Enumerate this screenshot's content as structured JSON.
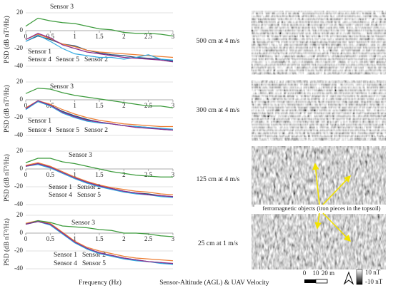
{
  "chart_data": [
    {
      "type": "line",
      "caption": "500 cm at 4 m/s",
      "ylabel": "PSD (dB nT²/Hz)",
      "x": [
        0,
        0.25,
        0.5,
        0.75,
        1,
        1.25,
        1.5,
        1.75,
        2,
        2.25,
        2.5,
        2.75,
        3
      ],
      "xlim": [
        0,
        3
      ],
      "xticks": [
        0,
        0.5,
        1,
        1.5,
        2,
        2.5,
        3
      ],
      "ylim": [
        -40,
        20
      ],
      "yticks": [
        -40,
        -20,
        0,
        20
      ],
      "grid": true,
      "series": [
        {
          "name": "Sensor 1",
          "color": "#1f4e79",
          "values": [
            -12,
            -6,
            -10,
            -15,
            -17,
            -22,
            -25,
            -27,
            -28,
            -30,
            -31,
            -32,
            -34
          ]
        },
        {
          "name": "Sensor 2",
          "color": "#ed7d31",
          "values": [
            -10,
            -4,
            -9,
            -15,
            -18,
            -22,
            -24,
            -25,
            -26,
            -27,
            -28,
            -29,
            -30
          ]
        },
        {
          "name": "Sensor 3",
          "color": "#3a9a3a",
          "values": [
            5,
            14,
            11,
            9,
            8,
            5,
            2,
            1,
            -2,
            -3,
            -3,
            -4,
            -6
          ]
        },
        {
          "name": "Sensor 4",
          "color": "#2ea8e0",
          "values": [
            -12,
            -5,
            -12,
            -20,
            -26,
            -28,
            -30,
            -30,
            -32,
            -30,
            -27,
            -32,
            -33
          ]
        },
        {
          "name": "Sensor 5",
          "color": "#8b2a8b",
          "values": [
            -10,
            -3,
            -8,
            -16,
            -20,
            -24,
            -26,
            -28,
            -30,
            -31,
            -32,
            -33,
            -35
          ]
        }
      ]
    },
    {
      "type": "line",
      "caption": "300 cm at 4 m/s",
      "ylabel": "PSD (dB nT²/Hz)",
      "x": [
        0,
        0.25,
        0.5,
        0.75,
        1,
        1.25,
        1.5,
        1.75,
        2,
        2.25,
        2.5,
        2.75,
        3
      ],
      "xlim": [
        0,
        3
      ],
      "xticks": [
        0,
        0.5,
        1,
        1.5,
        2,
        2.5,
        3
      ],
      "ylim": [
        -40,
        20
      ],
      "yticks": [
        -40,
        -20,
        0,
        20
      ],
      "grid": true,
      "series": [
        {
          "name": "Sensor 1",
          "color": "#1f4e79",
          "values": [
            -10,
            -2,
            -6,
            -13,
            -18,
            -22,
            -25,
            -27,
            -29,
            -30,
            -31,
            -33,
            -34
          ]
        },
        {
          "name": "Sensor 2",
          "color": "#ed7d31",
          "values": [
            -9,
            -1,
            -5,
            -11,
            -16,
            -20,
            -23,
            -25,
            -27,
            -28,
            -29,
            -30,
            -30
          ]
        },
        {
          "name": "Sensor 3",
          "color": "#3a9a3a",
          "values": [
            7,
            13,
            12,
            8,
            5,
            3,
            1,
            -1,
            -3,
            -5,
            -7,
            -7,
            -9
          ]
        },
        {
          "name": "Sensor 4",
          "color": "#2ea8e0",
          "values": [
            -11,
            -2,
            -7,
            -15,
            -20,
            -24,
            -26,
            -27,
            -29,
            -30,
            -31,
            -32,
            -33
          ]
        },
        {
          "name": "Sensor 5",
          "color": "#8b2a8b",
          "values": [
            -10,
            -1,
            -6,
            -14,
            -19,
            -23,
            -25,
            -27,
            -29,
            -31,
            -32,
            -33,
            -34
          ]
        }
      ]
    },
    {
      "type": "line",
      "caption": "125 cm at 4 m/s",
      "ylabel": "PSD (dB nT²/Hz)",
      "x": [
        0,
        0.25,
        0.5,
        0.75,
        1,
        1.25,
        1.5,
        1.75,
        2,
        2.25,
        2.5,
        2.75,
        3
      ],
      "xlim": [
        0,
        3
      ],
      "xticks": [
        0,
        0.5,
        1,
        1.5,
        2,
        2.5,
        3
      ],
      "ylim": [
        -40,
        20
      ],
      "yticks": [
        -40,
        -20,
        0,
        20
      ],
      "grid": true,
      "series": [
        {
          "name": "Sensor 1",
          "color": "#1f4e79",
          "values": [
            3,
            6,
            2,
            -4,
            -10,
            -15,
            -19,
            -22,
            -25,
            -27,
            -28,
            -30,
            -31
          ]
        },
        {
          "name": "Sensor 2",
          "color": "#ed7d31",
          "values": [
            4,
            7,
            3,
            -3,
            -9,
            -14,
            -18,
            -21,
            -23,
            -25,
            -26,
            -28,
            -29
          ]
        },
        {
          "name": "Sensor 3",
          "color": "#3a9a3a",
          "values": [
            7,
            12,
            12,
            8,
            6,
            3,
            0,
            -3,
            -5,
            -7,
            -8,
            -9,
            -9
          ]
        },
        {
          "name": "Sensor 4",
          "color": "#2ea8e0",
          "values": [
            3,
            5,
            1,
            -5,
            -11,
            -16,
            -20,
            -23,
            -26,
            -28,
            -29,
            -31,
            -32
          ]
        },
        {
          "name": "Sensor 5",
          "color": "#8b2a8b",
          "values": [
            3,
            6,
            2,
            -4,
            -10,
            -15,
            -19,
            -22,
            -25,
            -27,
            -29,
            -30,
            -31
          ]
        }
      ]
    },
    {
      "type": "line",
      "caption": "25 cm at 1 m/s",
      "ylabel": "PSD (dB nT²/Hz)",
      "x": [
        0,
        0.25,
        0.5,
        0.75,
        1,
        1.25,
        1.5,
        1.75,
        2,
        2.25,
        2.5,
        2.75,
        3
      ],
      "xlim": [
        0,
        3
      ],
      "xticks": [
        0,
        0.5,
        1,
        1.5,
        2,
        2.5,
        3
      ],
      "ylim": [
        -40,
        20
      ],
      "yticks": [
        -40,
        -20,
        0,
        20
      ],
      "grid": true,
      "series": [
        {
          "name": "Sensor 1",
          "color": "#1f4e79",
          "values": [
            10,
            13,
            10,
            0,
            -10,
            -18,
            -22,
            -25,
            -28,
            -30,
            -32,
            -33,
            -35
          ]
        },
        {
          "name": "Sensor 2",
          "color": "#ed7d31",
          "values": [
            11,
            14,
            11,
            1,
            -9,
            -16,
            -20,
            -23,
            -26,
            -28,
            -29,
            -30,
            -31
          ]
        },
        {
          "name": "Sensor 3",
          "color": "#3a9a3a",
          "values": [
            10,
            14,
            12,
            8,
            7,
            6,
            4,
            3,
            0,
            0,
            -1,
            -3,
            -4
          ]
        },
        {
          "name": "Sensor 4",
          "color": "#2ea8e0",
          "values": [
            10,
            13,
            9,
            -1,
            -11,
            -18,
            -23,
            -26,
            -29,
            -31,
            -32,
            -34,
            -35
          ]
        },
        {
          "name": "Sensor 5",
          "color": "#8b2a8b",
          "values": [
            10,
            13,
            10,
            0,
            -10,
            -17,
            -22,
            -25,
            -28,
            -30,
            -32,
            -33,
            -34
          ]
        }
      ]
    }
  ],
  "footer": {
    "xlabel": "Frequency (Hz)",
    "rowlabel": "Sensor-Altitude (AGL) & UAV Velocity"
  },
  "annotation": "ferromagnetic objects (iron pieces in the topsoil)",
  "scalebar": {
    "labels": [
      "0",
      "10",
      "20 m"
    ]
  },
  "colorbar": {
    "max": "10 nT",
    "min": "-10 nT"
  }
}
